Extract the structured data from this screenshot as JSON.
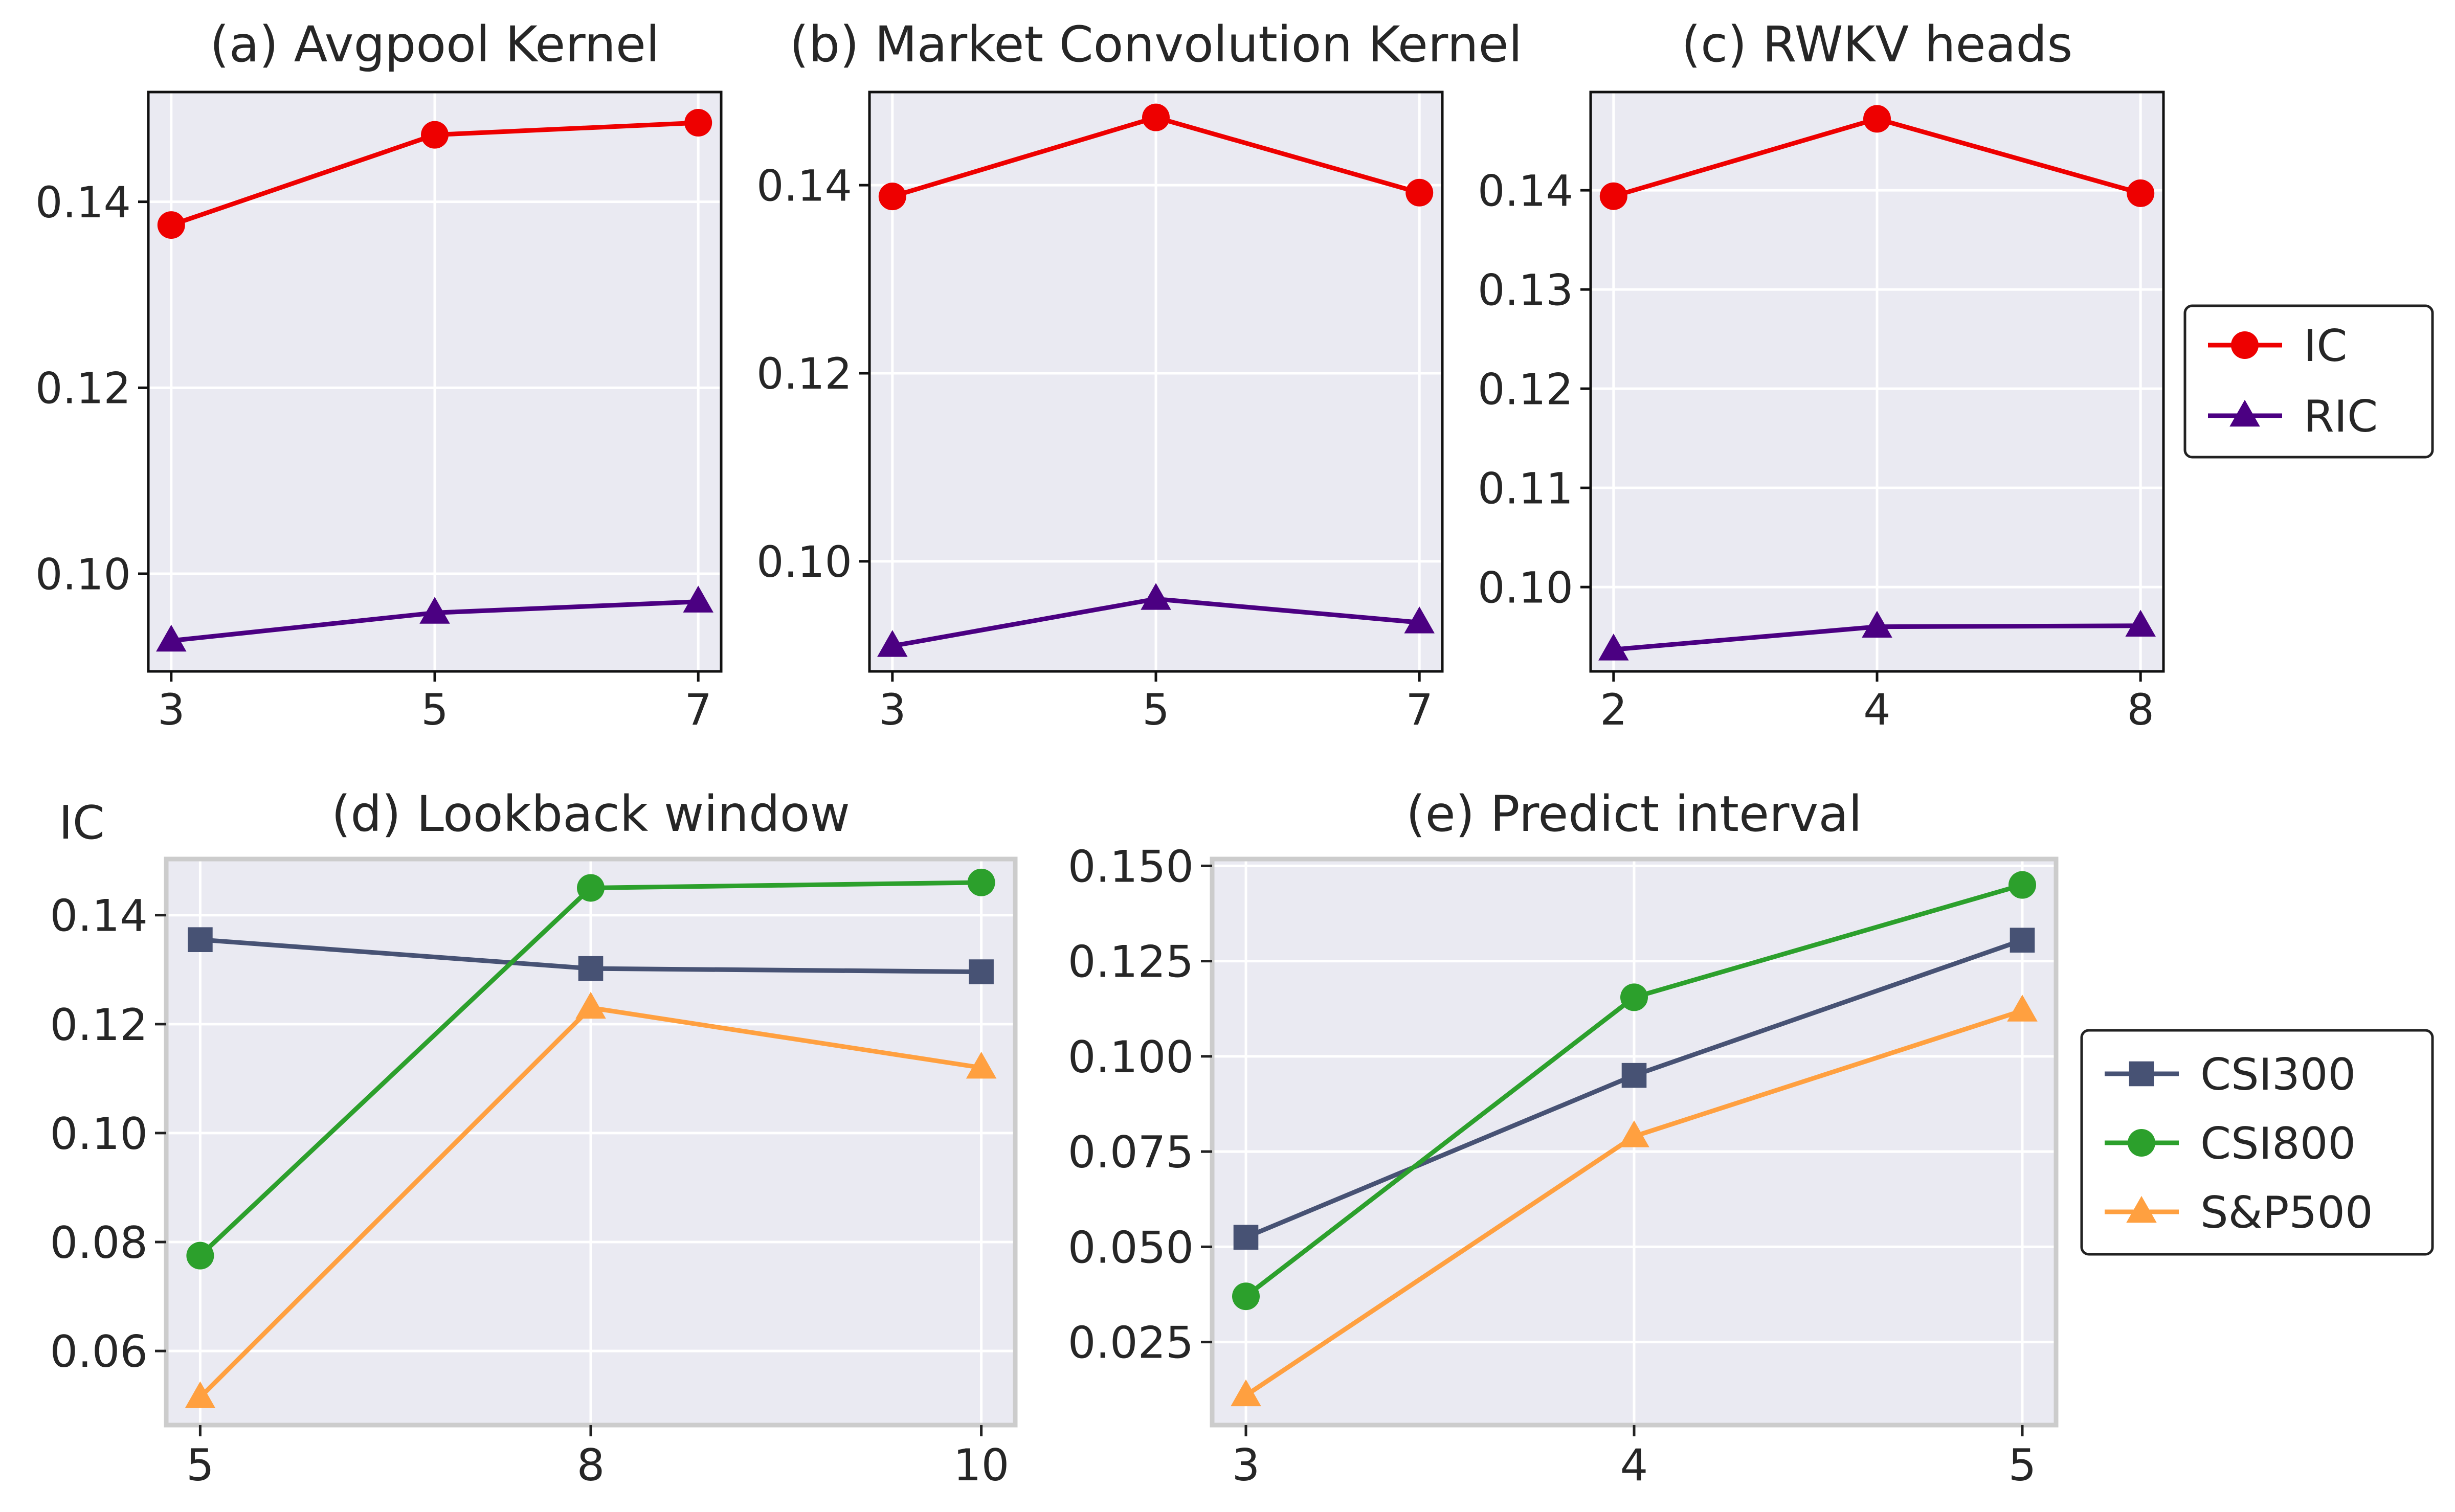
{
  "colors": {
    "panel_bg": "#eaeaf2",
    "grid": "#ffffff",
    "ic": "#ee0000",
    "ric": "#4b0082",
    "csi300": "#475274",
    "csi800": "#2ca02c",
    "sp500": "#ffa040"
  },
  "legend_top": {
    "entries": [
      {
        "label": "IC",
        "color": "#ee0000",
        "marker": "circle"
      },
      {
        "label": "RIC",
        "color": "#4b0082",
        "marker": "triangle"
      }
    ]
  },
  "legend_bottom": {
    "entries": [
      {
        "label": "CSI300",
        "color": "#475274",
        "marker": "square"
      },
      {
        "label": "CSI800",
        "color": "#2ca02c",
        "marker": "circle"
      },
      {
        "label": "S&P500",
        "color": "#ffa040",
        "marker": "triangle"
      }
    ]
  },
  "chart_data": [
    {
      "id": "a",
      "type": "line",
      "title": "(a) Avgpool Kernel",
      "ylabel": "",
      "categories": [
        "3",
        "5",
        "7"
      ],
      "yticks": [
        "0.10",
        "0.12",
        "0.14"
      ],
      "ylim": [
        0.0895,
        0.1518
      ],
      "series": [
        {
          "name": "IC",
          "color": "#ee0000",
          "marker": "circle",
          "values": [
            0.1375,
            0.1472,
            0.1485
          ]
        },
        {
          "name": "RIC",
          "color": "#4b0082",
          "marker": "triangle",
          "values": [
            0.0928,
            0.0958,
            0.097
          ]
        }
      ]
    },
    {
      "id": "b",
      "type": "line",
      "title": "(b) Market Convolution Kernel",
      "ylabel": "",
      "categories": [
        "3",
        "5",
        "7"
      ],
      "yticks": [
        "0.10",
        "0.12",
        "0.14"
      ],
      "ylim": [
        0.0883,
        0.1499
      ],
      "series": [
        {
          "name": "IC",
          "color": "#ee0000",
          "marker": "circle",
          "values": [
            0.1388,
            0.1472,
            0.1392
          ]
        },
        {
          "name": "RIC",
          "color": "#4b0082",
          "marker": "triangle",
          "values": [
            0.091,
            0.096,
            0.0935
          ]
        }
      ]
    },
    {
      "id": "c",
      "type": "line",
      "title": "(c) RWKV heads",
      "ylabel": "",
      "categories": [
        "2",
        "4",
        "8"
      ],
      "yticks": [
        "0.10",
        "0.11",
        "0.12",
        "0.13",
        "0.14"
      ],
      "ylim": [
        0.0915,
        0.1499
      ],
      "series": [
        {
          "name": "IC",
          "color": "#ee0000",
          "marker": "circle",
          "values": [
            0.1394,
            0.1472,
            0.1397
          ]
        },
        {
          "name": "RIC",
          "color": "#4b0082",
          "marker": "triangle",
          "values": [
            0.0937,
            0.096,
            0.0961
          ]
        }
      ]
    },
    {
      "id": "d",
      "type": "line",
      "title": "(d) Lookback window",
      "ylabel": "IC",
      "categories": [
        "5",
        "8",
        "10"
      ],
      "yticks": [
        "0.06",
        "0.08",
        "0.10",
        "0.12",
        "0.14"
      ],
      "ylim": [
        0.0464,
        0.1503
      ],
      "series": [
        {
          "name": "CSI300",
          "color": "#475274",
          "marker": "square",
          "values": [
            0.1355,
            0.1302,
            0.1296
          ]
        },
        {
          "name": "CSI800",
          "color": "#2ca02c",
          "marker": "circle",
          "values": [
            0.0775,
            0.145,
            0.146
          ]
        },
        {
          "name": "S&P500",
          "color": "#ffa040",
          "marker": "triangle",
          "values": [
            0.0515,
            0.123,
            0.112
          ]
        }
      ]
    },
    {
      "id": "e",
      "type": "line",
      "title": "(e) Predict interval",
      "ylabel": "",
      "categories": [
        "3",
        "4",
        "5"
      ],
      "yticks": [
        "0.025",
        "0.050",
        "0.075",
        "0.100",
        "0.125",
        "0.150"
      ],
      "ylim": [
        0.0032,
        0.1518
      ],
      "series": [
        {
          "name": "CSI300",
          "color": "#475274",
          "marker": "square",
          "values": [
            0.0525,
            0.095,
            0.1305
          ]
        },
        {
          "name": "CSI800",
          "color": "#2ca02c",
          "marker": "circle",
          "values": [
            0.037,
            0.1155,
            0.145
          ]
        },
        {
          "name": "S&P500",
          "color": "#ffa040",
          "marker": "triangle",
          "values": [
            0.011,
            0.079,
            0.112
          ]
        }
      ]
    }
  ]
}
